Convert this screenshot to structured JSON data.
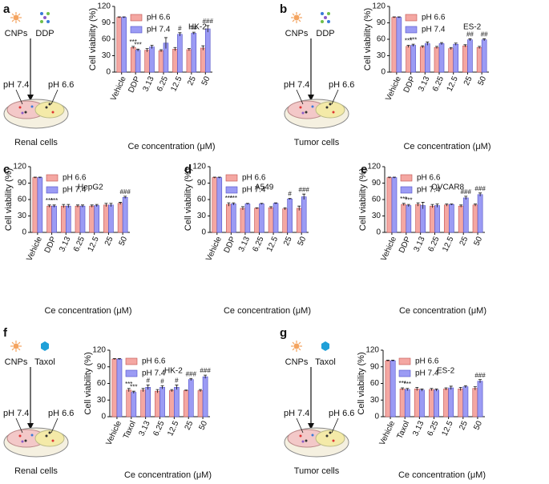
{
  "chart_data": [
    {
      "type": "bar",
      "panel": "a",
      "title": "HK-2",
      "ylabel": "Cell viability (%)",
      "xlabel": "Ce concentration (μM)",
      "categories": [
        "Vehicle",
        "DDP",
        "3.13",
        "6.25",
        "12.5",
        "25",
        "50"
      ],
      "ylim": [
        0,
        120
      ],
      "yticks": [
        0,
        30,
        60,
        90,
        120
      ],
      "series": [
        {
          "name": "pH 6.6",
          "color": "#f4a7a2",
          "values": [
            100,
            45,
            40,
            39,
            42,
            41,
            44
          ],
          "errors": [
            1,
            2,
            3,
            2,
            3,
            2,
            4
          ],
          "annotations": [
            null,
            "***",
            null,
            null,
            null,
            null,
            null
          ]
        },
        {
          "name": "pH 7.4",
          "color": "#9b9bf4",
          "values": [
            100,
            40,
            46,
            53,
            69,
            71,
            79
          ],
          "errors": [
            1,
            2,
            3,
            10,
            3,
            2,
            6
          ],
          "annotations": [
            null,
            "***",
            null,
            null,
            "#",
            "##",
            "###"
          ]
        }
      ],
      "schematic": {
        "drug1": "CNPs",
        "drug2": "DDP",
        "left": "pH 7.4",
        "right": "pH 6.6",
        "cells": "Renal cells"
      }
    },
    {
      "type": "bar",
      "panel": "b",
      "title": "ES-2",
      "ylabel": "Cell viability (%)",
      "xlabel": "Ce concentration (μM)",
      "categories": [
        "Vehicle",
        "DDP",
        "3.13",
        "6.25",
        "12.5",
        "25",
        "50"
      ],
      "ylim": [
        0,
        120
      ],
      "yticks": [
        0,
        30,
        60,
        90,
        120
      ],
      "series": [
        {
          "name": "pH 6.6",
          "color": "#f4a7a2",
          "values": [
            100,
            47,
            46,
            45,
            43,
            48,
            45
          ],
          "errors": [
            1,
            2,
            2,
            2,
            2,
            2,
            2
          ],
          "annotations": [
            null,
            "***",
            null,
            null,
            null,
            null,
            null
          ]
        },
        {
          "name": "pH 7.4",
          "color": "#9b9bf4",
          "values": [
            100,
            49,
            52,
            52,
            51,
            59,
            59
          ],
          "errors": [
            1,
            2,
            3,
            2,
            2,
            2,
            2
          ],
          "annotations": [
            null,
            "***",
            null,
            null,
            null,
            "##",
            "##"
          ]
        }
      ],
      "schematic": {
        "drug1": "CNPs",
        "drug2": "DDP",
        "left": "pH 7.4",
        "right": "pH 6.6",
        "cells": "Tumor cells"
      }
    },
    {
      "type": "bar",
      "panel": "c",
      "title": "HepG2",
      "ylabel": "Cell viability (%)",
      "xlabel": "Ce concentration (μM)",
      "categories": [
        "Vehicle",
        "DDP",
        "3.13",
        "6.25",
        "12.5",
        "25",
        "50"
      ],
      "ylim": [
        0,
        120
      ],
      "yticks": [
        0,
        30,
        60,
        90,
        120
      ],
      "series": [
        {
          "name": "pH 6.6",
          "color": "#f4a7a2",
          "values": [
            100,
            48,
            48,
            48,
            48,
            50,
            53
          ],
          "errors": [
            1,
            2,
            3,
            2,
            2,
            3,
            2
          ],
          "annotations": [
            null,
            "***",
            null,
            null,
            null,
            null,
            null
          ]
        },
        {
          "name": "pH 7.4",
          "color": "#9b9bf4",
          "values": [
            100,
            48,
            48,
            48,
            49,
            50,
            64
          ],
          "errors": [
            1,
            2,
            3,
            2,
            2,
            3,
            2
          ],
          "annotations": [
            null,
            "***",
            null,
            null,
            null,
            null,
            "###"
          ]
        }
      ]
    },
    {
      "type": "bar",
      "panel": "d",
      "title": "A549",
      "ylabel": "Cell viability (%)",
      "xlabel": "Ce concentration (μM)",
      "categories": [
        "Vehicle",
        "DDP",
        "3.13",
        "6.25",
        "12.5",
        "25",
        "50"
      ],
      "ylim": [
        0,
        120
      ],
      "yticks": [
        0,
        30,
        60,
        90,
        120
      ],
      "series": [
        {
          "name": "pH 6.6",
          "color": "#f4a7a2",
          "values": [
            100,
            51,
            44,
            44,
            45,
            43,
            44
          ],
          "errors": [
            1,
            3,
            3,
            1,
            2,
            2,
            4
          ],
          "annotations": [
            null,
            "***",
            null,
            null,
            null,
            null,
            null
          ]
        },
        {
          "name": "pH 7.4",
          "color": "#9b9bf4",
          "values": [
            100,
            52,
            52,
            52,
            53,
            61,
            65
          ],
          "errors": [
            1,
            2,
            1,
            1,
            1,
            1,
            5
          ],
          "annotations": [
            null,
            "***",
            null,
            null,
            null,
            "#",
            "###"
          ]
        }
      ]
    },
    {
      "type": "bar",
      "panel": "e",
      "title": "OVCAR8",
      "ylabel": "Cell viability (%)",
      "xlabel": "Ce concentration (μM)",
      "categories": [
        "Vehicle",
        "DDP",
        "3.13",
        "6.25",
        "12.5",
        "25",
        "50"
      ],
      "ylim": [
        0,
        120
      ],
      "yticks": [
        0,
        30,
        60,
        90,
        120
      ],
      "series": [
        {
          "name": "pH 6.6",
          "color": "#f4a7a2",
          "values": [
            100,
            51,
            51,
            48,
            50,
            48,
            50
          ],
          "errors": [
            1,
            2,
            3,
            3,
            2,
            2,
            2
          ],
          "annotations": [
            null,
            "***",
            null,
            null,
            null,
            null,
            null
          ]
        },
        {
          "name": "pH 7.4",
          "color": "#9b9bf4",
          "values": [
            100,
            49,
            49,
            49,
            51,
            63,
            69
          ],
          "errors": [
            1,
            2,
            6,
            3,
            1,
            3,
            3
          ],
          "annotations": [
            null,
            "***",
            null,
            null,
            null,
            "###",
            "###"
          ]
        }
      ]
    },
    {
      "type": "bar",
      "panel": "f",
      "title": "HK-2",
      "ylabel": "Cell viability (%)",
      "xlabel": "Ce concentration (μM)",
      "categories": [
        "Vehicle",
        "Taxol",
        "3.13",
        "6.25",
        "12.5",
        "25",
        "50"
      ],
      "ylim": [
        0,
        120
      ],
      "yticks": [
        0,
        30,
        60,
        90,
        120
      ],
      "series": [
        {
          "name": "pH 6.6",
          "color": "#f4a7a2",
          "values": [
            104,
            48,
            48,
            46,
            47,
            47,
            47
          ],
          "errors": [
            1,
            3,
            3,
            3,
            2,
            1,
            2
          ],
          "annotations": [
            null,
            "***",
            null,
            null,
            null,
            null,
            null
          ]
        },
        {
          "name": "pH 7.4",
          "color": "#9b9bf4",
          "values": [
            104,
            44,
            53,
            53,
            53,
            67,
            72
          ],
          "errors": [
            1,
            2,
            4,
            3,
            4,
            2,
            3
          ],
          "annotations": [
            null,
            "***",
            "#",
            "#",
            "#",
            "###",
            "###"
          ]
        }
      ],
      "schematic": {
        "drug1": "CNPs",
        "drug2": "Taxol",
        "left": "pH 7.4",
        "right": "pH 6.6",
        "cells": "Renal cells"
      }
    },
    {
      "type": "bar",
      "panel": "g",
      "title": "ES-2",
      "ylabel": "Cell viability (%)",
      "xlabel": "Ce concentration (μM)",
      "categories": [
        "Vehicle",
        "Taxol",
        "3.13",
        "6.25",
        "12.5",
        "25",
        "50"
      ],
      "ylim": [
        0,
        120
      ],
      "yticks": [
        0,
        30,
        60,
        90,
        120
      ],
      "series": [
        {
          "name": "pH 6.6",
          "color": "#f4a7a2",
          "values": [
            101,
            50,
            50,
            49,
            50,
            50,
            51
          ],
          "errors": [
            1,
            2,
            3,
            2,
            2,
            3,
            3
          ],
          "annotations": [
            null,
            "***",
            null,
            null,
            null,
            null,
            null
          ]
        },
        {
          "name": "pH 7.4",
          "color": "#9b9bf4",
          "values": [
            101,
            49,
            48,
            48,
            52,
            54,
            64
          ],
          "errors": [
            1,
            2,
            2,
            2,
            3,
            2,
            3
          ],
          "annotations": [
            null,
            "***",
            null,
            null,
            null,
            null,
            "###"
          ]
        }
      ],
      "schematic": {
        "drug1": "CNPs",
        "drug2": "Taxol",
        "left": "pH 7.4",
        "right": "pH 6.6",
        "cells": "Tumor cells"
      }
    }
  ]
}
